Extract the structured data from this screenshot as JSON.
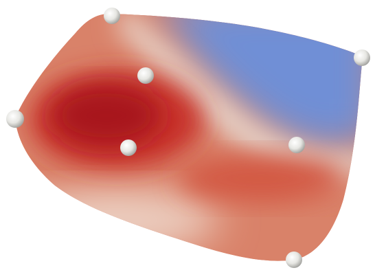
{
  "scene": {
    "surface_colormap": {
      "low_color": "#6f8fd6",
      "mid_color": "#e6d8cf",
      "high_color": "#a8141b",
      "warm_color": "#d86a4e"
    },
    "control_point_color": "#f2f2ee",
    "control_point_count": 7
  }
}
